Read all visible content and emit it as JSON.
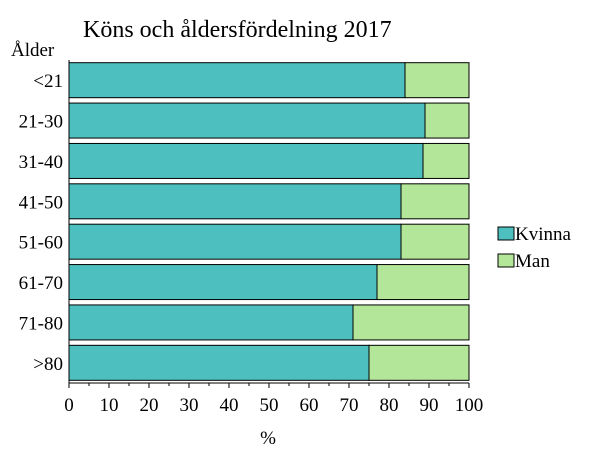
{
  "chart_data": {
    "type": "bar",
    "orientation": "horizontal",
    "stacked": true,
    "title": "Köns och åldersfördelning 2017",
    "category_axis_label": "Ålder",
    "xlabel": "%",
    "xlim": [
      0,
      100
    ],
    "x_ticks": [
      0,
      10,
      20,
      30,
      40,
      50,
      60,
      70,
      80,
      90,
      100
    ],
    "grid": false,
    "legend_position": "right",
    "categories": [
      "<21",
      "21-30",
      "31-40",
      "41-50",
      "51-60",
      "61-70",
      "71-80",
      ">80"
    ],
    "series": [
      {
        "name": "Kvinna",
        "color": "#4dbfbf",
        "values": [
          84,
          89,
          88.5,
          83,
          83,
          77,
          71,
          75
        ]
      },
      {
        "name": "Man",
        "color": "#b3e699",
        "values": [
          16,
          11,
          11.5,
          17,
          17,
          23,
          29,
          25
        ]
      }
    ]
  }
}
